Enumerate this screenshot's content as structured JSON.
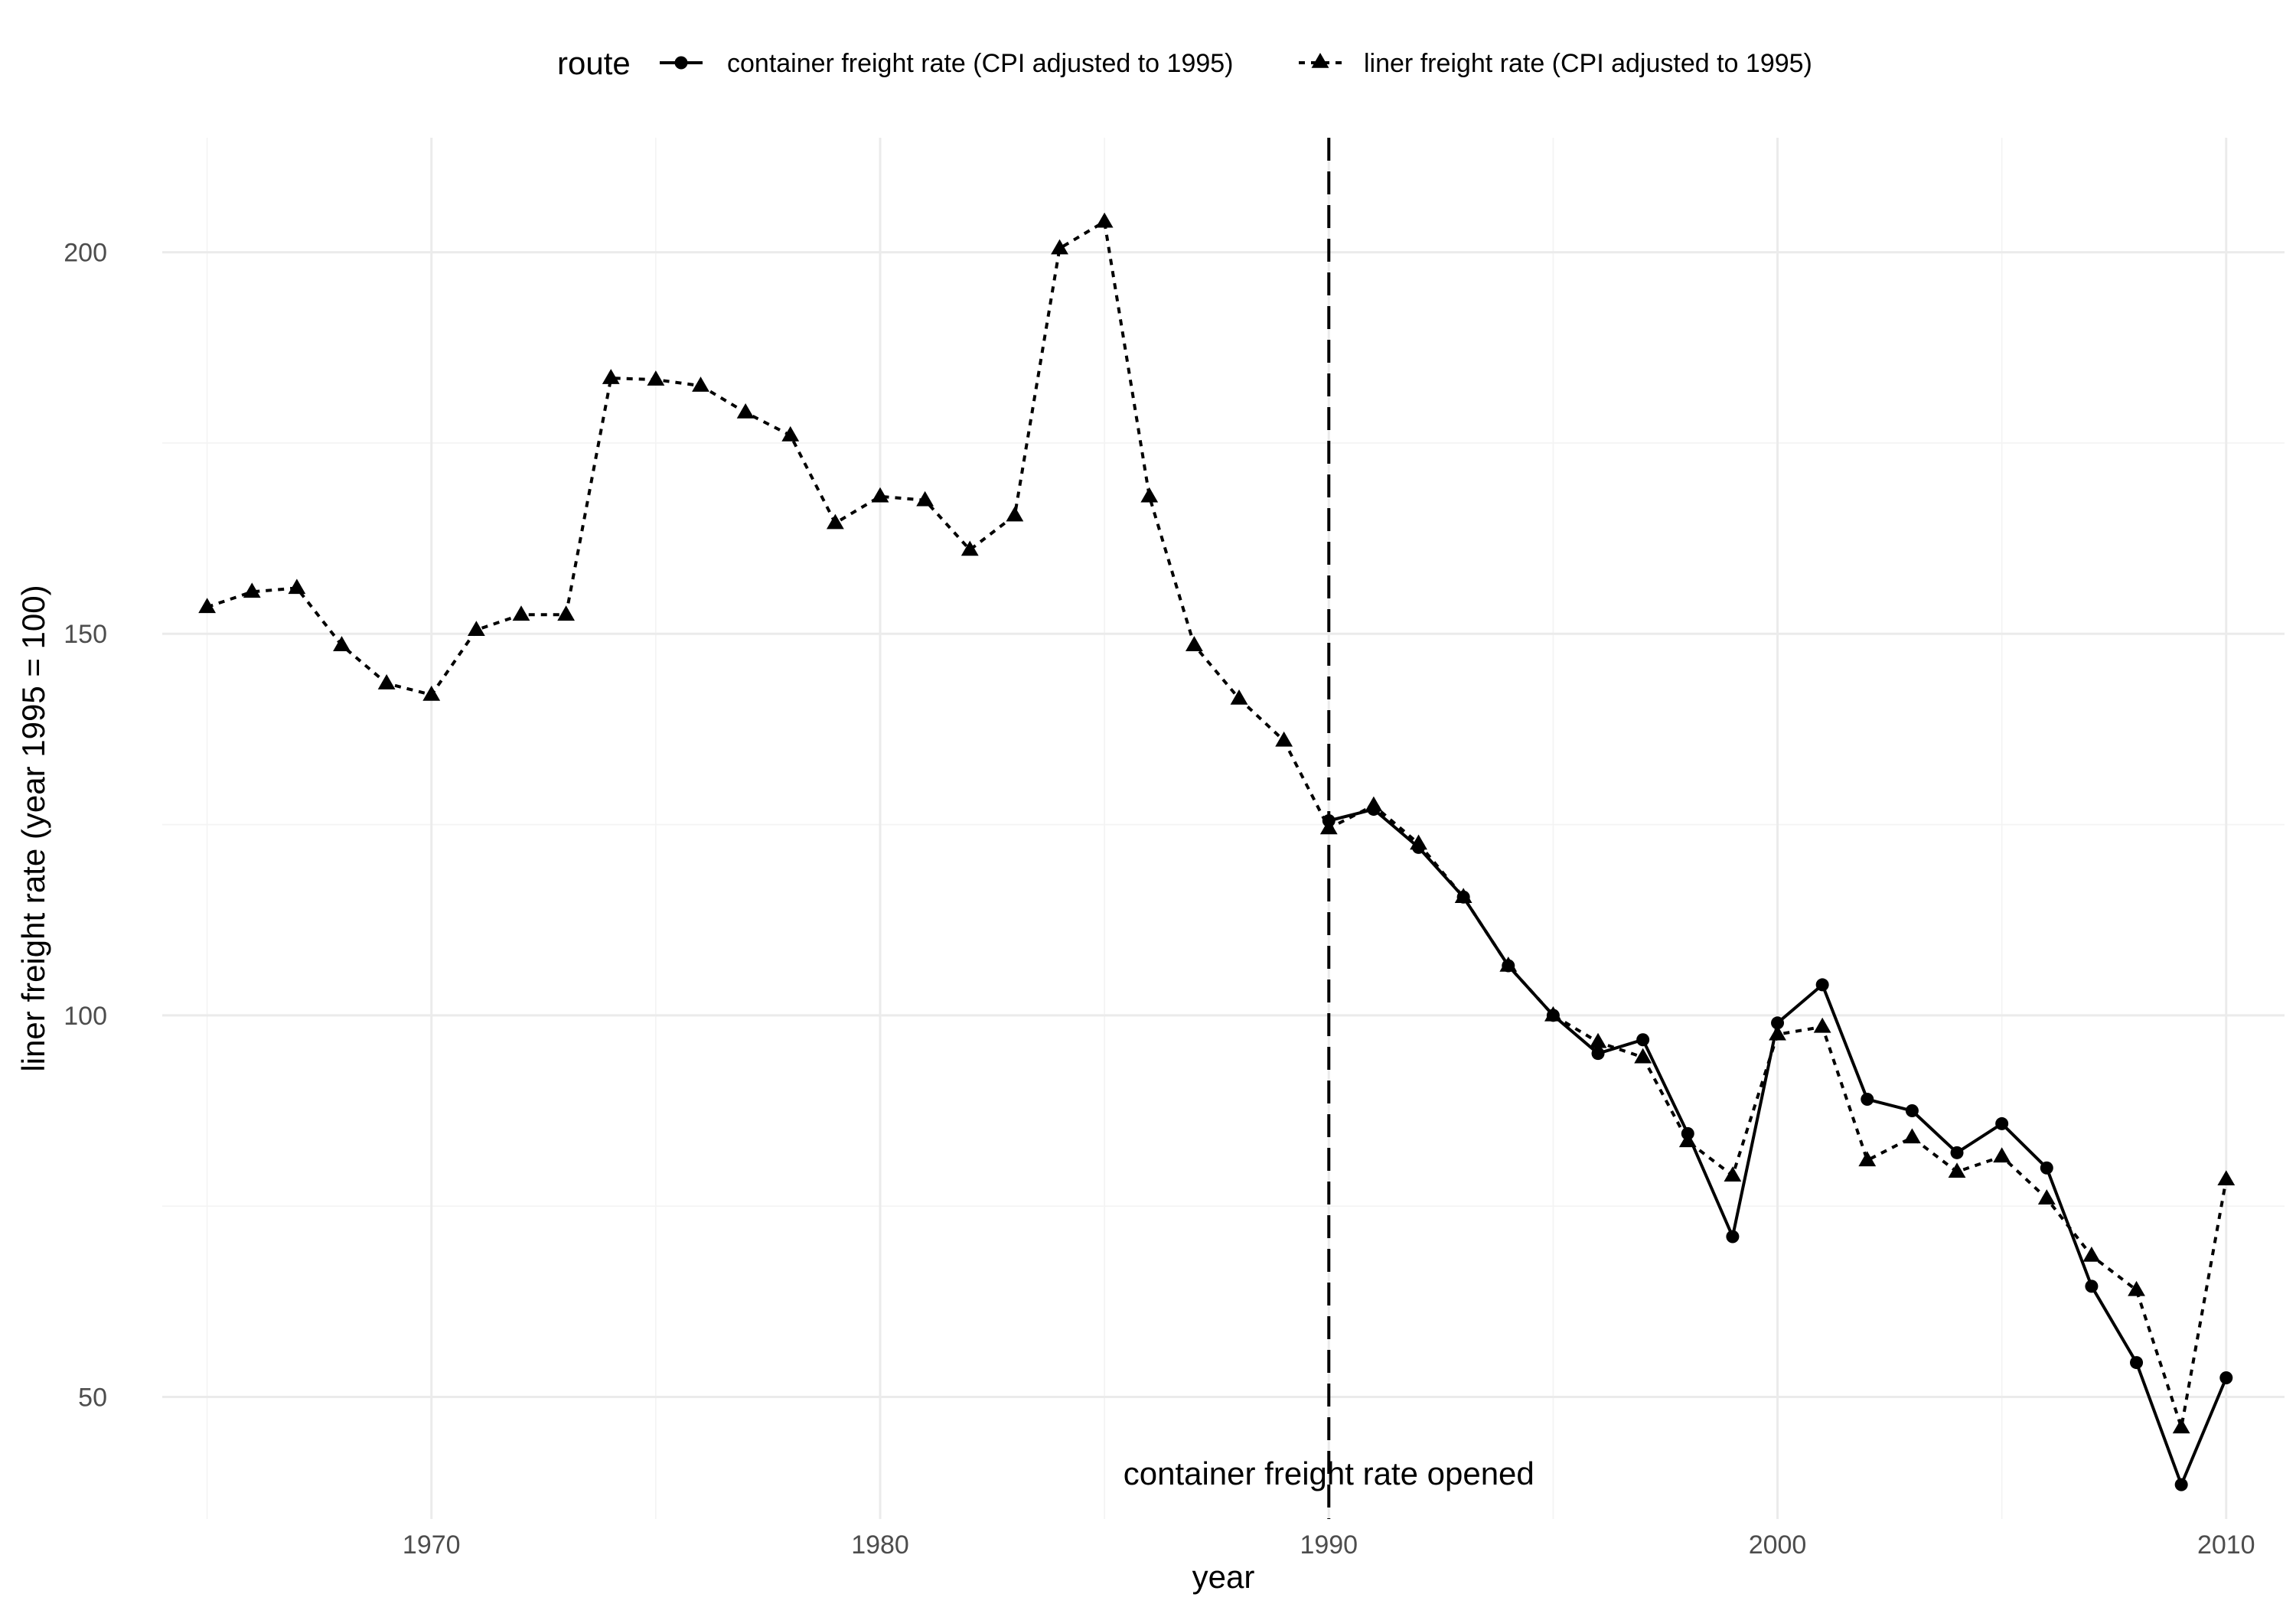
{
  "chart_data": {
    "type": "line",
    "xlabel": "year",
    "ylabel": "liner freight rate (year 1995 = 100)",
    "xlim": [
      1964,
      2011.3
    ],
    "ylim": [
      34,
      215
    ],
    "x_ticks": [
      1970,
      1980,
      1990,
      2000,
      2010
    ],
    "x_minor_ticks": [
      1965,
      1975,
      1985,
      1995,
      2005
    ],
    "y_ticks": [
      50,
      100,
      150,
      200
    ],
    "y_minor_ticks": [
      75,
      125,
      175
    ],
    "grid": true,
    "legend": {
      "title": "route",
      "position": "top",
      "entries": [
        "container freight rate (CPI adjusted to 1995)",
        "liner freight rate (CPI adjusted to 1995)"
      ]
    },
    "annotations": [
      {
        "type": "vline",
        "x": 1990,
        "linetype": "dashed",
        "label": "container freight rate opened",
        "label_y": 40
      }
    ],
    "series": [
      {
        "name": "container freight rate (CPI adjusted to 1995)",
        "linetype": "solid",
        "marker": "circle",
        "x": [
          1990,
          1991,
          1992,
          1993,
          1994,
          1995,
          1996,
          1997,
          1998,
          1999,
          2000,
          2001,
          2002,
          2003,
          2004,
          2005,
          2006,
          2007,
          2008,
          2009,
          2010
        ],
        "y": [
          125.5,
          127,
          122,
          115.5,
          106.5,
          100,
          95,
          96.8,
          84.5,
          71,
          99,
          104,
          89,
          87.5,
          82,
          85.8,
          80,
          64.5,
          54.5,
          38.5,
          52.5
        ]
      },
      {
        "name": "liner freight rate (CPI adjusted to 1995)",
        "linetype": "dotted",
        "marker": "triangle",
        "x": [
          1965,
          1966,
          1967,
          1968,
          1969,
          1970,
          1971,
          1972,
          1973,
          1974,
          1975,
          1976,
          1977,
          1978,
          1979,
          1980,
          1981,
          1982,
          1983,
          1984,
          1985,
          1986,
          1987,
          1988,
          1989,
          1990,
          1991,
          1992,
          1993,
          1994,
          1995,
          1996,
          1997,
          1998,
          1999,
          2000,
          2001,
          2002,
          2003,
          2004,
          2005,
          2006,
          2007,
          2008,
          2009,
          2010
        ],
        "y": [
          153.5,
          155.5,
          156,
          148.5,
          143.5,
          142,
          150.5,
          152.5,
          152.5,
          183.5,
          183.3,
          182.5,
          179,
          176,
          164.5,
          168,
          167.5,
          161,
          165.5,
          200.5,
          204,
          168,
          148.5,
          141.5,
          136,
          124.5,
          127.5,
          122.5,
          115.5,
          106.5,
          100,
          96.5,
          94.5,
          83.5,
          79,
          97.5,
          98.5,
          81,
          84,
          79.5,
          81.5,
          76,
          68.5,
          64,
          46,
          78.5
        ]
      }
    ]
  }
}
